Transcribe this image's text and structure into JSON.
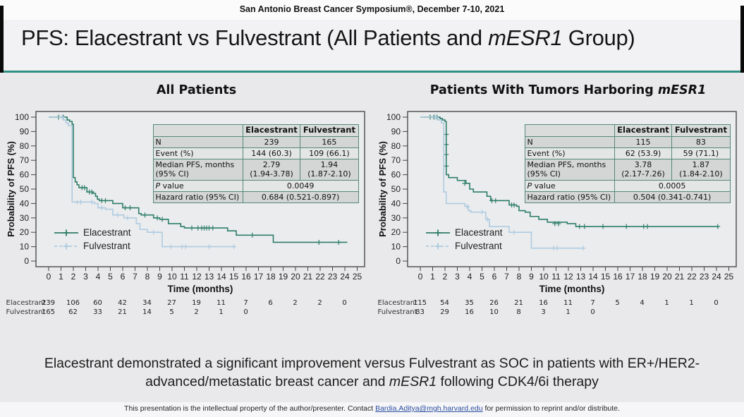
{
  "header": {
    "symposium": "San Antonio Breast Cancer Symposium®, December 7-10, 2021"
  },
  "title": {
    "prefix": "PFS: Elacestrant vs Fulvestrant (All Patients and ",
    "italic": "mESR1",
    "suffix": " Group)"
  },
  "colors": {
    "rule_accent": "#2f9183",
    "elacestrant": "#2e7e68",
    "fulvestrant": "#aecbe0"
  },
  "panels": [
    {
      "title": {
        "prefix": "All Patients",
        "italic": ""
      },
      "stats_table": {
        "col_headers": [
          "",
          "Elacestrant",
          "Fulvestrant"
        ],
        "rows": [
          {
            "label": "N",
            "values": [
              "239",
              "165"
            ]
          },
          {
            "label": "Event (%)",
            "values": [
              "144 (60.3)",
              "109 (66.1)"
            ]
          },
          {
            "label": "Median PFS, months\n(95% CI)",
            "values": [
              "2.79\n(1.94-3.78)",
              "1.94\n(1.87-2.10)"
            ]
          },
          {
            "label_italic": "P",
            "label": " value",
            "values": [
              "0.0049"
            ],
            "span": true
          },
          {
            "label": "Hazard ratio (95% CI)",
            "values": [
              "0.684 (0.521-0.897)"
            ],
            "span": true
          }
        ]
      },
      "chart_data": {
        "type": "line",
        "km_step": true,
        "title": "All Patients",
        "xlabel": "Time (months)",
        "ylabel": "Probability of PFS (%)",
        "xlim": [
          0,
          25
        ],
        "ylim": [
          0,
          100
        ],
        "xtick_step": 1,
        "ytick_step": 10,
        "legend_position": "lower-left",
        "series": [
          {
            "name": "Elacestrant",
            "color": "#2e7e68",
            "legend_dash": false,
            "steps": [
              [
                0,
                100
              ],
              [
                1.5,
                98
              ],
              [
                1.7,
                97
              ],
              [
                1.9,
                95
              ],
              [
                2.0,
                58
              ],
              [
                2.15,
                55
              ],
              [
                2.3,
                53
              ],
              [
                2.45,
                51
              ],
              [
                3.1,
                48
              ],
              [
                3.6,
                47
              ],
              [
                3.8,
                45
              ],
              [
                3.95,
                43
              ],
              [
                4.1,
                42
              ],
              [
                5.2,
                40
              ],
              [
                6.0,
                37
              ],
              [
                7.3,
                33
              ],
              [
                7.5,
                32
              ],
              [
                8.5,
                30
              ],
              [
                9.0,
                29
              ],
              [
                9.7,
                26
              ],
              [
                10.7,
                24
              ],
              [
                11.0,
                23
              ],
              [
                14.5,
                21
              ],
              [
                15.2,
                18
              ],
              [
                18.2,
                13
              ],
              [
                24.2,
                13
              ]
            ],
            "censors": [
              [
                0.8,
                100
              ],
              [
                1.2,
                100
              ],
              [
                2.7,
                51
              ],
              [
                2.9,
                51
              ],
              [
                3.3,
                48
              ],
              [
                3.5,
                48
              ],
              [
                4.3,
                42
              ],
              [
                4.6,
                42
              ],
              [
                6.2,
                37
              ],
              [
                6.6,
                37
              ],
              [
                7.8,
                32
              ],
              [
                8.8,
                30
              ],
              [
                9.2,
                29
              ],
              [
                11.6,
                23
              ],
              [
                12.1,
                23
              ],
              [
                12.4,
                23
              ],
              [
                12.6,
                23
              ],
              [
                12.8,
                23
              ],
              [
                13.0,
                23
              ],
              [
                13.3,
                23
              ],
              [
                16.5,
                18
              ],
              [
                21.9,
                13
              ],
              [
                23.5,
                13
              ]
            ]
          },
          {
            "name": "Fulvestrant",
            "color": "#aecbe0",
            "legend_dash": true,
            "steps": [
              [
                0,
                100
              ],
              [
                1.2,
                98
              ],
              [
                1.4,
                96
              ],
              [
                1.6,
                94
              ],
              [
                1.9,
                41
              ],
              [
                3.7,
                40
              ],
              [
                4.0,
                37
              ],
              [
                4.6,
                36
              ],
              [
                5.2,
                32
              ],
              [
                6.1,
                30
              ],
              [
                7.1,
                26
              ],
              [
                7.4,
                22
              ],
              [
                8.0,
                20
              ],
              [
                9.2,
                10
              ],
              [
                15.1,
                10
              ]
            ],
            "censors": [
              [
                1.1,
                100
              ],
              [
                2.3,
                41
              ],
              [
                2.6,
                41
              ],
              [
                3.5,
                41
              ],
              [
                4.3,
                37
              ],
              [
                5.6,
                32
              ],
              [
                6.4,
                30
              ],
              [
                8.5,
                20
              ],
              [
                9.9,
                10
              ],
              [
                10.8,
                10
              ],
              [
                11.1,
                10
              ],
              [
                13.0,
                10
              ],
              [
                15.0,
                10
              ]
            ]
          }
        ]
      },
      "risk_table": {
        "months": [
          0,
          2,
          4,
          6,
          8,
          10,
          12,
          14,
          16,
          18,
          20,
          22,
          24
        ],
        "rows": [
          {
            "name": "Elacestrant",
            "values": [
              239,
              106,
              60,
              42,
              34,
              27,
              19,
              11,
              7,
              6,
              2,
              2,
              0
            ]
          },
          {
            "name": "Fulvestrant",
            "values": [
              165,
              62,
              33,
              21,
              14,
              5,
              2,
              1,
              0
            ]
          }
        ]
      }
    },
    {
      "title": {
        "prefix": "Patients With Tumors Harboring ",
        "italic": "mESR1"
      },
      "stats_table": {
        "col_headers": [
          "",
          "Elacestrant",
          "Fulvestrant"
        ],
        "rows": [
          {
            "label": "N",
            "values": [
              "115",
              "83"
            ]
          },
          {
            "label": "Event (%)",
            "values": [
              "62 (53.9)",
              "59 (71.1)"
            ]
          },
          {
            "label": "Median PFS, months\n(95% CI)",
            "values": [
              "3.78\n(2.17-7.26)",
              "1.87\n(1.84-2.10)"
            ]
          },
          {
            "label_italic": "P",
            "label": " value",
            "values": [
              "0.0005"
            ],
            "span": true
          },
          {
            "label": "Hazard ratio (95% CI)",
            "values": [
              "0.504 (0.341-0.741)"
            ],
            "span": true
          }
        ]
      },
      "chart_data": {
        "type": "line",
        "km_step": true,
        "title": "Patients With Tumors Harboring mESR1",
        "xlabel": "Time (months)",
        "ylabel": "Probability of PFS (%)",
        "xlim": [
          0,
          25
        ],
        "ylim": [
          0,
          100
        ],
        "xtick_step": 1,
        "ytick_step": 10,
        "legend_position": "lower-left",
        "series": [
          {
            "name": "Elacestrant",
            "color": "#2e7e68",
            "legend_dash": false,
            "steps": [
              [
                0,
                100
              ],
              [
                1.6,
                99
              ],
              [
                1.8,
                98
              ],
              [
                2.0,
                97
              ],
              [
                2.1,
                60
              ],
              [
                2.3,
                58
              ],
              [
                3.0,
                56
              ],
              [
                3.7,
                54
              ],
              [
                4.0,
                50
              ],
              [
                4.3,
                48
              ],
              [
                5.4,
                45
              ],
              [
                5.7,
                42
              ],
              [
                7.2,
                39
              ],
              [
                7.8,
                38
              ],
              [
                8.0,
                35
              ],
              [
                8.5,
                34
              ],
              [
                8.9,
                31
              ],
              [
                9.6,
                29
              ],
              [
                10.3,
                27
              ],
              [
                11.9,
                26
              ],
              [
                12.6,
                24
              ],
              [
                24.2,
                24
              ]
            ],
            "censors": [
              [
                0.8,
                100
              ],
              [
                1.1,
                100
              ],
              [
                1.35,
                100
              ],
              [
                2.1,
                88
              ],
              [
                2.1,
                81
              ],
              [
                2.1,
                74
              ],
              [
                2.1,
                66
              ],
              [
                3.6,
                54
              ],
              [
                5.8,
                42
              ],
              [
                6.1,
                42
              ],
              [
                7.4,
                39
              ],
              [
                7.6,
                39
              ],
              [
                10.9,
                26
              ],
              [
                11.2,
                26
              ],
              [
                12.9,
                24
              ],
              [
                13.3,
                24
              ],
              [
                14.8,
                24
              ],
              [
                16.7,
                24
              ],
              [
                18.1,
                24
              ],
              [
                18.4,
                24
              ],
              [
                24.1,
                24
              ]
            ]
          },
          {
            "name": "Fulvestrant",
            "color": "#aecbe0",
            "legend_dash": true,
            "steps": [
              [
                0,
                100
              ],
              [
                1.4,
                98
              ],
              [
                1.7,
                96
              ],
              [
                1.9,
                48
              ],
              [
                2.1,
                40
              ],
              [
                3.6,
                38
              ],
              [
                3.9,
                35
              ],
              [
                4.1,
                34
              ],
              [
                5.3,
                29
              ],
              [
                5.6,
                24
              ],
              [
                7.2,
                20
              ],
              [
                9.0,
                9
              ],
              [
                13.2,
                9
              ]
            ],
            "censors": [
              [
                1.2,
                100
              ],
              [
                3.8,
                38
              ],
              [
                5.0,
                34
              ],
              [
                5.45,
                29
              ],
              [
                7.6,
                20
              ],
              [
                10.8,
                9
              ],
              [
                11.1,
                9
              ],
              [
                13.2,
                9
              ]
            ]
          }
        ]
      },
      "risk_table": {
        "months": [
          0,
          2,
          4,
          6,
          8,
          10,
          12,
          14,
          16,
          18,
          20,
          22,
          24
        ],
        "rows": [
          {
            "name": "Elacestrant",
            "values": [
              115,
              54,
              35,
              26,
              21,
              16,
              11,
              7,
              5,
              4,
              1,
              1,
              0
            ]
          },
          {
            "name": "Fulvestrant",
            "values": [
              83,
              29,
              16,
              10,
              8,
              3,
              1,
              0
            ]
          }
        ]
      }
    }
  ],
  "conclusion": {
    "line1": "Elacestrant demonstrated a significant improvement versus Fulvestrant as SOC in patients with ER+/HER2-",
    "line2_prefix": "advanced/metastatic breast cancer and ",
    "line2_italic": "mESR1",
    "line2_suffix": " following CDK4/6i therapy"
  },
  "footer": {
    "prefix": "This presentation is the intellectual property of the author/presenter. Contact ",
    "email": "Bardia.Aditya@mgh.harvard.edu",
    "suffix": " for permission to reprint and/or distribute."
  }
}
